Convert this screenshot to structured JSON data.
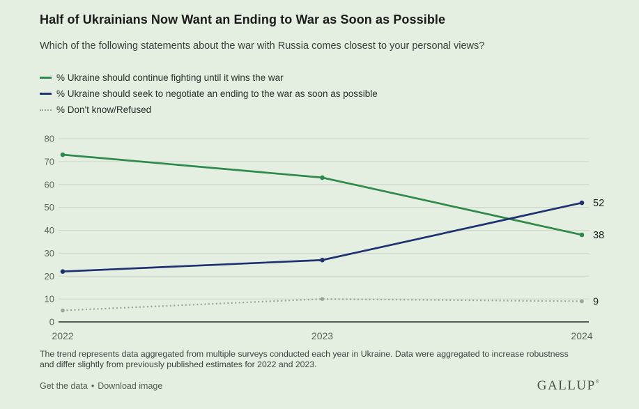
{
  "header": {
    "title": "Half of Ukrainians Now Want an Ending to War as Soon as Possible",
    "subtitle": "Which of the following statements about the war with Russia comes closest to your personal views?"
  },
  "chart_data": {
    "type": "line",
    "x": [
      "2022",
      "2023",
      "2024"
    ],
    "series": [
      {
        "name": "% Ukraine should continue fighting until it wins the war",
        "values": [
          73,
          63,
          38
        ],
        "color": "#2e8a4c",
        "style": "solid",
        "end_label": "38"
      },
      {
        "name": "% Ukraine should seek to negotiate an ending to the war as soon as possible",
        "values": [
          22,
          27,
          52
        ],
        "color": "#1f3170",
        "style": "solid",
        "end_label": "52"
      },
      {
        "name": "% Don't know/Refused",
        "values": [
          5,
          10,
          9
        ],
        "color": "#9aa29a",
        "style": "dotted",
        "end_label": "9"
      }
    ],
    "ylim": [
      0,
      80
    ],
    "ytick_step": 10,
    "grid": true,
    "legend_position": "top-left",
    "title": "Half of Ukrainians Now Want an Ending to War as Soon as Possible",
    "xlabel": "",
    "ylabel": ""
  },
  "footnote": "The trend represents data aggregated from multiple surveys conducted each year in Ukraine. Data were aggregated to increase robustness and differ slightly from previously published estimates for 2022 and 2023.",
  "footer": {
    "links": [
      {
        "label": "Get the data"
      },
      {
        "label": "Download image"
      }
    ],
    "separator": "•",
    "logo": "GALLUP",
    "logo_mark": "®"
  },
  "colors": {
    "background": "#e4efe1",
    "gridline": "#ccd6c7",
    "axis": "#2b2b2b",
    "tick_label": "#5a625a",
    "end_label": "#1d1d1d"
  }
}
